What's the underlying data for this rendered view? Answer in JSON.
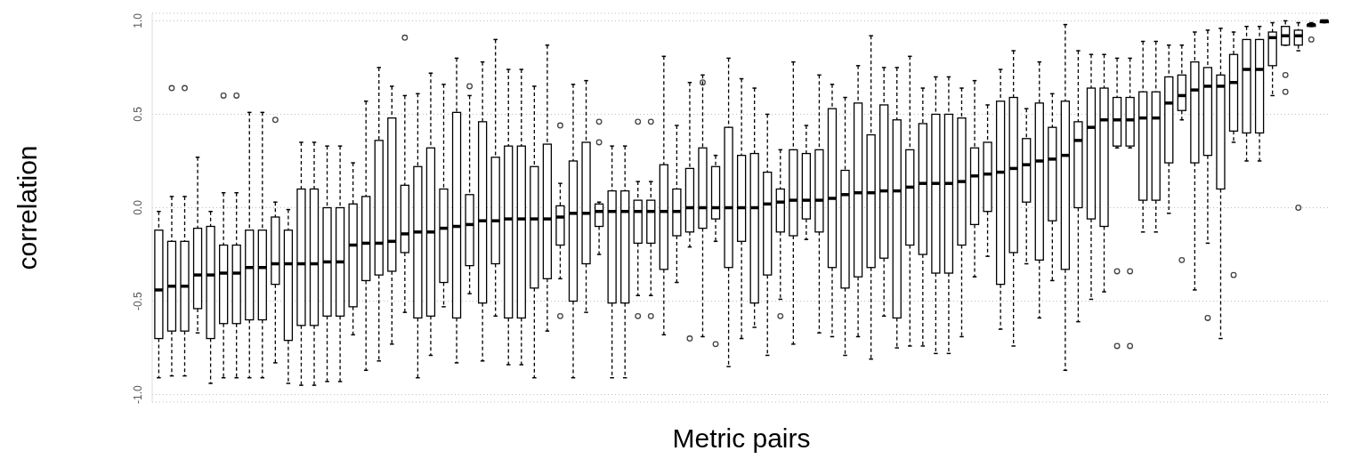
{
  "chart_data": {
    "type": "box",
    "xlabel": "Metric pairs",
    "ylabel": "correlation",
    "categories": [
      null,
      null,
      null,
      null,
      null,
      null,
      null,
      null,
      null,
      null,
      null,
      null,
      null,
      null,
      null,
      null,
      null,
      null,
      null,
      null,
      null,
      null,
      null,
      null,
      null,
      null,
      null,
      null,
      null,
      null,
      null,
      null,
      null,
      null,
      null,
      null,
      null,
      null,
      null,
      null,
      null,
      null,
      null,
      null,
      null,
      null,
      null,
      null,
      null,
      null,
      null,
      null,
      null,
      null,
      null,
      null,
      null,
      null,
      null,
      null,
      null,
      null,
      null,
      null,
      null,
      null,
      null,
      null,
      null,
      null,
      null,
      null,
      null,
      null,
      null,
      null,
      null,
      null,
      null,
      null,
      null,
      null,
      null,
      null,
      null,
      null,
      null,
      null,
      null,
      null,
      null
    ],
    "ylim": [
      -1.04,
      1.04
    ],
    "yticks": [
      {
        "value": -1,
        "label": "-1.0"
      },
      {
        "value": -0.5,
        "label": "-0.5"
      },
      {
        "value": 0,
        "label": "0.0"
      },
      {
        "value": 0.5,
        "label": "0.5"
      },
      {
        "value": 1,
        "label": "1.0"
      }
    ],
    "grid": "y",
    "tick_labels": "y",
    "boxes": [
      {
        "low": -0.91,
        "q1": -0.7,
        "median": -0.44,
        "q3": -0.12,
        "high": -0.02
      },
      {
        "low": -0.9,
        "q1": -0.66,
        "median": -0.42,
        "q3": -0.18,
        "high": 0.06,
        "outliers": [
          0.64
        ]
      },
      {
        "low": -0.9,
        "q1": -0.66,
        "median": -0.42,
        "q3": -0.18,
        "high": 0.06,
        "outliers": [
          0.64
        ]
      },
      {
        "low": -0.67,
        "q1": -0.54,
        "median": -0.36,
        "q3": -0.11,
        "high": 0.27
      },
      {
        "low": -0.94,
        "q1": -0.7,
        "median": -0.36,
        "q3": -0.1,
        "high": -0.02
      },
      {
        "low": -0.91,
        "q1": -0.62,
        "median": -0.35,
        "q3": -0.2,
        "high": 0.08,
        "outliers": [
          0.6
        ]
      },
      {
        "low": -0.91,
        "q1": -0.62,
        "median": -0.35,
        "q3": -0.2,
        "high": 0.08,
        "outliers": [
          0.6
        ]
      },
      {
        "low": -0.91,
        "q1": -0.6,
        "median": -0.32,
        "q3": -0.12,
        "high": 0.51
      },
      {
        "low": -0.91,
        "q1": -0.6,
        "median": -0.32,
        "q3": -0.12,
        "high": 0.51
      },
      {
        "low": -0.83,
        "q1": -0.41,
        "median": -0.3,
        "q3": -0.05,
        "high": 0.03,
        "outliers": [
          0.47
        ]
      },
      {
        "low": -0.94,
        "q1": -0.71,
        "median": -0.3,
        "q3": -0.12,
        "high": -0.01
      },
      {
        "low": -0.95,
        "q1": -0.63,
        "median": -0.3,
        "q3": 0.1,
        "high": 0.35
      },
      {
        "low": -0.95,
        "q1": -0.63,
        "median": -0.3,
        "q3": 0.1,
        "high": 0.35
      },
      {
        "low": -0.93,
        "q1": -0.58,
        "median": -0.29,
        "q3": 0.0,
        "high": 0.33
      },
      {
        "low": -0.93,
        "q1": -0.58,
        "median": -0.29,
        "q3": 0.0,
        "high": 0.33
      },
      {
        "low": -0.68,
        "q1": -0.53,
        "median": -0.2,
        "q3": 0.02,
        "high": 0.24
      },
      {
        "low": -0.87,
        "q1": -0.39,
        "median": -0.19,
        "q3": 0.06,
        "high": 0.57
      },
      {
        "low": -0.82,
        "q1": -0.36,
        "median": -0.19,
        "q3": 0.36,
        "high": 0.75
      },
      {
        "low": -0.73,
        "q1": -0.34,
        "median": -0.18,
        "q3": 0.48,
        "high": 0.65
      },
      {
        "low": -0.56,
        "q1": -0.24,
        "median": -0.14,
        "q3": 0.12,
        "high": 0.6,
        "outliers": [
          0.91
        ]
      },
      {
        "low": -0.91,
        "q1": -0.59,
        "median": -0.13,
        "q3": 0.22,
        "high": 0.61
      },
      {
        "low": -0.79,
        "q1": -0.58,
        "median": -0.13,
        "q3": 0.32,
        "high": 0.72
      },
      {
        "low": -0.53,
        "q1": -0.4,
        "median": -0.11,
        "q3": 0.1,
        "high": 0.66
      },
      {
        "low": -0.83,
        "q1": -0.59,
        "median": -0.1,
        "q3": 0.51,
        "high": 0.8
      },
      {
        "low": -0.46,
        "q1": -0.31,
        "median": -0.09,
        "q3": 0.07,
        "high": 0.6,
        "outliers": [
          0.65
        ]
      },
      {
        "low": -0.82,
        "q1": -0.51,
        "median": -0.07,
        "q3": 0.46,
        "high": 0.78
      },
      {
        "low": -0.58,
        "q1": -0.3,
        "median": -0.07,
        "q3": 0.27,
        "high": 0.9
      },
      {
        "low": -0.84,
        "q1": -0.59,
        "median": -0.06,
        "q3": 0.33,
        "high": 0.74
      },
      {
        "low": -0.84,
        "q1": -0.59,
        "median": -0.06,
        "q3": 0.33,
        "high": 0.74
      },
      {
        "low": -0.91,
        "q1": -0.43,
        "median": -0.06,
        "q3": 0.22,
        "high": 0.65
      },
      {
        "low": -0.66,
        "q1": -0.38,
        "median": -0.06,
        "q3": 0.34,
        "high": 0.87
      },
      {
        "low": -0.38,
        "q1": -0.2,
        "median": -0.05,
        "q3": 0.01,
        "high": 0.13,
        "outliers": [
          0.44,
          -0.58
        ]
      },
      {
        "low": -0.91,
        "q1": -0.5,
        "median": -0.03,
        "q3": 0.25,
        "high": 0.66
      },
      {
        "low": -0.56,
        "q1": -0.3,
        "median": -0.03,
        "q3": 0.35,
        "high": 0.68
      },
      {
        "low": -0.25,
        "q1": -0.1,
        "median": -0.02,
        "q3": 0.02,
        "high": 0.03,
        "outliers": [
          0.46,
          0.35
        ]
      },
      {
        "low": -0.91,
        "q1": -0.51,
        "median": -0.02,
        "q3": 0.09,
        "high": 0.33
      },
      {
        "low": -0.91,
        "q1": -0.51,
        "median": -0.02,
        "q3": 0.09,
        "high": 0.33
      },
      {
        "low": -0.47,
        "q1": -0.19,
        "median": -0.02,
        "q3": 0.04,
        "high": 0.14,
        "outliers": [
          0.46,
          -0.58
        ]
      },
      {
        "low": -0.47,
        "q1": -0.19,
        "median": -0.02,
        "q3": 0.04,
        "high": 0.14,
        "outliers": [
          0.46,
          -0.58
        ]
      },
      {
        "low": -0.68,
        "q1": -0.33,
        "median": -0.02,
        "q3": 0.23,
        "high": 0.81
      },
      {
        "low": -0.4,
        "q1": -0.15,
        "median": -0.02,
        "q3": 0.1,
        "high": 0.44
      },
      {
        "low": -0.21,
        "q1": -0.13,
        "median": 0.0,
        "q3": 0.21,
        "high": 0.67,
        "outliers": [
          -0.7
        ]
      },
      {
        "low": -0.69,
        "q1": -0.11,
        "median": 0.0,
        "q3": 0.32,
        "high": 0.71,
        "outliers": [
          0.67
        ]
      },
      {
        "low": -0.18,
        "q1": -0.06,
        "median": 0.0,
        "q3": 0.22,
        "high": 0.28,
        "outliers": [
          -0.73
        ]
      },
      {
        "low": -0.85,
        "q1": -0.32,
        "median": 0.0,
        "q3": 0.43,
        "high": 0.8
      },
      {
        "low": -0.7,
        "q1": -0.18,
        "median": 0.0,
        "q3": 0.28,
        "high": 0.69
      },
      {
        "low": -0.64,
        "q1": -0.51,
        "median": 0.0,
        "q3": 0.29,
        "high": 0.64
      },
      {
        "low": -0.79,
        "q1": -0.36,
        "median": 0.02,
        "q3": 0.19,
        "high": 0.5
      },
      {
        "low": -0.49,
        "q1": -0.13,
        "median": 0.03,
        "q3": 0.1,
        "high": 0.31,
        "outliers": [
          -0.58
        ]
      },
      {
        "low": -0.73,
        "q1": -0.15,
        "median": 0.04,
        "q3": 0.31,
        "high": 0.78
      },
      {
        "low": -0.17,
        "q1": -0.06,
        "median": 0.04,
        "q3": 0.29,
        "high": 0.44
      },
      {
        "low": -0.67,
        "q1": -0.13,
        "median": 0.04,
        "q3": 0.31,
        "high": 0.71
      },
      {
        "low": -0.69,
        "q1": -0.32,
        "median": 0.05,
        "q3": 0.53,
        "high": 0.66
      },
      {
        "low": -0.79,
        "q1": -0.43,
        "median": 0.07,
        "q3": 0.2,
        "high": 0.59
      },
      {
        "low": -0.69,
        "q1": -0.37,
        "median": 0.08,
        "q3": 0.56,
        "high": 0.76
      },
      {
        "low": -0.81,
        "q1": -0.32,
        "median": 0.08,
        "q3": 0.39,
        "high": 0.92
      },
      {
        "low": -0.58,
        "q1": -0.27,
        "median": 0.09,
        "q3": 0.55,
        "high": 0.75
      },
      {
        "low": -0.75,
        "q1": -0.59,
        "median": 0.09,
        "q3": 0.47,
        "high": 0.75
      },
      {
        "low": -0.74,
        "q1": -0.2,
        "median": 0.11,
        "q3": 0.31,
        "high": 0.81
      },
      {
        "low": -0.74,
        "q1": -0.25,
        "median": 0.13,
        "q3": 0.45,
        "high": 0.64
      },
      {
        "low": -0.78,
        "q1": -0.35,
        "median": 0.13,
        "q3": 0.5,
        "high": 0.7
      },
      {
        "low": -0.78,
        "q1": -0.35,
        "median": 0.13,
        "q3": 0.5,
        "high": 0.7
      },
      {
        "low": -0.69,
        "q1": -0.2,
        "median": 0.14,
        "q3": 0.48,
        "high": 0.64
      },
      {
        "low": -0.37,
        "q1": -0.09,
        "median": 0.17,
        "q3": 0.32,
        "high": 0.68
      },
      {
        "low": -0.26,
        "q1": -0.02,
        "median": 0.18,
        "q3": 0.35,
        "high": 0.55
      },
      {
        "low": -0.65,
        "q1": -0.41,
        "median": 0.19,
        "q3": 0.57,
        "high": 0.74
      },
      {
        "low": -0.74,
        "q1": -0.24,
        "median": 0.21,
        "q3": 0.59,
        "high": 0.84
      },
      {
        "low": -0.3,
        "q1": 0.03,
        "median": 0.23,
        "q3": 0.37,
        "high": 0.53
      },
      {
        "low": -0.59,
        "q1": -0.28,
        "median": 0.25,
        "q3": 0.56,
        "high": 0.78
      },
      {
        "low": -0.39,
        "q1": -0.07,
        "median": 0.26,
        "q3": 0.43,
        "high": 0.61
      },
      {
        "low": -0.87,
        "q1": -0.33,
        "median": 0.28,
        "q3": 0.57,
        "high": 0.98
      },
      {
        "low": -0.61,
        "q1": 0.0,
        "median": 0.36,
        "q3": 0.46,
        "high": 0.84
      },
      {
        "low": -0.49,
        "q1": -0.06,
        "median": 0.43,
        "q3": 0.64,
        "high": 0.82
      },
      {
        "low": -0.45,
        "q1": -0.1,
        "median": 0.47,
        "q3": 0.64,
        "high": 0.82
      },
      {
        "low": 0.32,
        "q1": 0.33,
        "median": 0.47,
        "q3": 0.59,
        "high": 0.8,
        "outliers": [
          -0.34,
          -0.74
        ]
      },
      {
        "low": 0.32,
        "q1": 0.33,
        "median": 0.47,
        "q3": 0.59,
        "high": 0.8,
        "outliers": [
          -0.34,
          -0.74
        ]
      },
      {
        "low": -0.13,
        "q1": 0.04,
        "median": 0.48,
        "q3": 0.62,
        "high": 0.89
      },
      {
        "low": -0.13,
        "q1": 0.04,
        "median": 0.48,
        "q3": 0.62,
        "high": 0.89
      },
      {
        "low": -0.03,
        "q1": 0.24,
        "median": 0.56,
        "q3": 0.7,
        "high": 0.87
      },
      {
        "low": 0.47,
        "q1": 0.52,
        "median": 0.6,
        "q3": 0.71,
        "high": 0.87,
        "outliers": [
          -0.28
        ]
      },
      {
        "low": -0.44,
        "q1": 0.24,
        "median": 0.63,
        "q3": 0.78,
        "high": 0.94
      },
      {
        "low": -0.19,
        "q1": 0.28,
        "median": 0.65,
        "q3": 0.75,
        "high": 0.95,
        "outliers": [
          -0.59
        ]
      },
      {
        "low": -0.7,
        "q1": 0.1,
        "median": 0.65,
        "q3": 0.71,
        "high": 0.96
      },
      {
        "low": 0.35,
        "q1": 0.41,
        "median": 0.67,
        "q3": 0.82,
        "high": 0.94,
        "outliers": [
          -0.36
        ]
      },
      {
        "low": 0.25,
        "q1": 0.4,
        "median": 0.74,
        "q3": 0.9,
        "high": 0.97
      },
      {
        "low": 0.25,
        "q1": 0.4,
        "median": 0.74,
        "q3": 0.9,
        "high": 0.97
      },
      {
        "low": 0.6,
        "q1": 0.76,
        "median": 0.91,
        "q3": 0.94,
        "high": 0.99
      },
      {
        "low": 0.87,
        "q1": 0.87,
        "median": 0.92,
        "q3": 0.97,
        "high": 1.0,
        "outliers": [
          0.71,
          0.62
        ]
      },
      {
        "low": 0.84,
        "q1": 0.87,
        "median": 0.92,
        "q3": 0.95,
        "high": 0.99,
        "outliers": [
          0.0
        ]
      },
      {
        "low": 0.97,
        "q1": 0.97,
        "median": 0.98,
        "q3": 0.98,
        "high": 0.99,
        "outliers": [
          0.9
        ]
      },
      {
        "low": 0.99,
        "q1": 0.99,
        "median": 1.0,
        "q3": 1.0,
        "high": 1.0
      }
    ]
  }
}
